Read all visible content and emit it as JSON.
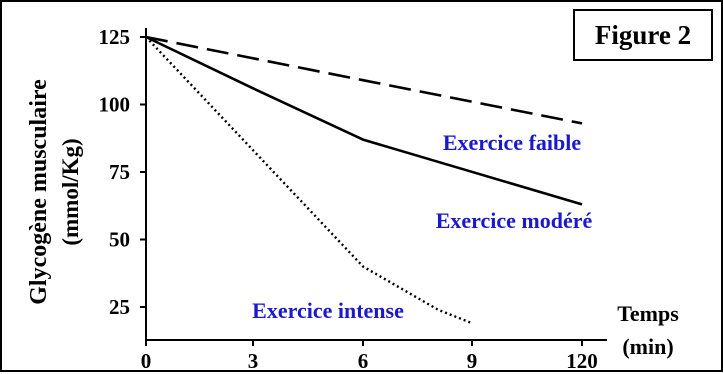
{
  "figure_label": "Figure 2",
  "chart_data": {
    "type": "line",
    "title": "",
    "ylabel_line1": "Glycogène musculaire",
    "ylabel_line2": "(mmol/Kg)",
    "xlabel_line1": "Temps",
    "xlabel_line2": "(min)",
    "x_ticks": [
      "0",
      "3",
      "6",
      "9",
      "120"
    ],
    "y_ticks": [
      25,
      50,
      75,
      100,
      125
    ],
    "ylim": [
      15,
      125
    ],
    "grid": false,
    "series": [
      {
        "name": "Exercice faible",
        "style": "dashed",
        "points": [
          {
            "x": "0",
            "y": 125
          },
          {
            "x": "6",
            "y": 109
          },
          {
            "x": "120",
            "y": 93
          }
        ]
      },
      {
        "name": "Exercice modéré",
        "style": "solid",
        "points": [
          {
            "x": "0",
            "y": 125
          },
          {
            "x": "3",
            "y": 106
          },
          {
            "x": "6",
            "y": 87
          },
          {
            "x": "120",
            "y": 63
          }
        ]
      },
      {
        "name": "Exercice intense",
        "style": "dotted",
        "points": [
          {
            "x": "0",
            "y": 125
          },
          {
            "x": "6",
            "y": 40
          },
          {
            "x": "8",
            "y": 24
          },
          {
            "x": "9",
            "y": 19
          }
        ]
      }
    ],
    "label_color": "#1a1acc"
  }
}
